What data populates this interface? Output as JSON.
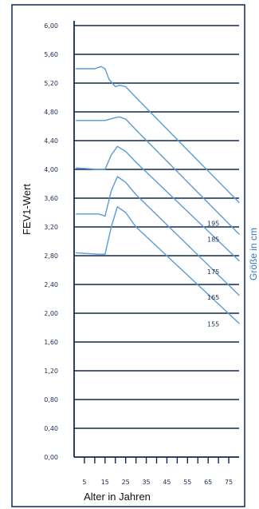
{
  "chart_data": {
    "type": "line",
    "xlabel": "Alter in Jahren",
    "ylabel": "FEV1-Wert",
    "right_label": "Größe in cm",
    "x_ticks": [
      "5",
      "15",
      "25",
      "35",
      "45",
      "55",
      "65",
      "75"
    ],
    "x_tick_values": [
      5,
      15,
      25,
      35,
      45,
      55,
      65,
      75
    ],
    "y_ticks": [
      "0,00",
      "0,40",
      "0,80",
      "1,20",
      "1,60",
      "2,00",
      "2,40",
      "2,80",
      "3,20",
      "3,60",
      "4,00",
      "4,40",
      "4,80",
      "5,20",
      "5,60",
      "6,00"
    ],
    "xlim": [
      0,
      80
    ],
    "ylim": [
      0,
      6
    ],
    "grid": true,
    "colors": {
      "line": "#5a9ad6",
      "grid": "#0f2a55",
      "right_label": "#2e7bc4"
    },
    "series": [
      {
        "name": "195",
        "x": [
          1,
          10,
          13,
          15,
          17,
          20,
          22,
          25,
          30,
          80
        ],
        "y": [
          5.4,
          5.4,
          5.43,
          5.4,
          5.25,
          5.15,
          5.17,
          5.15,
          5.0,
          3.54
        ]
      },
      {
        "name": "185",
        "x": [
          1,
          10,
          15,
          20,
          22,
          25,
          30,
          80
        ],
        "y": [
          4.68,
          4.68,
          4.68,
          4.72,
          4.73,
          4.7,
          4.55,
          3.1
        ]
      },
      {
        "name": "175",
        "x": [
          1,
          12,
          15,
          18,
          21,
          25,
          30,
          80
        ],
        "y": [
          4.02,
          4.0,
          4.0,
          4.2,
          4.32,
          4.25,
          4.1,
          2.73
        ]
      },
      {
        "name": "165",
        "x": [
          1,
          12,
          15,
          18,
          21,
          25,
          30,
          80
        ],
        "y": [
          3.38,
          3.38,
          3.35,
          3.7,
          3.9,
          3.82,
          3.65,
          2.25
        ]
      },
      {
        "name": "155",
        "x": [
          1,
          12,
          15,
          18,
          21,
          25,
          30,
          80
        ],
        "y": [
          2.84,
          2.82,
          2.82,
          3.2,
          3.48,
          3.4,
          3.2,
          1.86
        ]
      }
    ],
    "series_label_ys": [
      3.25,
      3.03,
      2.58,
      2.22,
      1.85
    ]
  }
}
